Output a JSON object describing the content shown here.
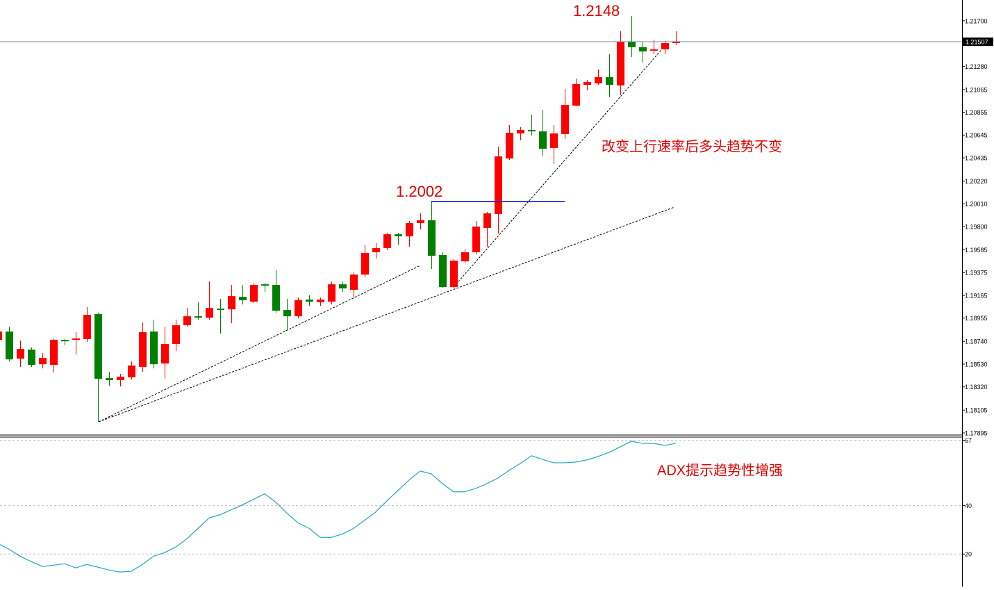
{
  "chart_data": [
    {
      "type": "candlestick",
      "up_color": "#ff0000",
      "down_color": "#008000",
      "open": [
        1.18754,
        1.18831,
        1.18581,
        1.18664,
        1.18529,
        1.18523,
        1.18754,
        1.18754,
        1.18761,
        1.18992,
        1.18401,
        1.18382,
        1.18408,
        1.18504,
        1.18831,
        1.18536,
        1.18716,
        1.18889,
        1.18972,
        1.18959,
        1.19043,
        1.19036,
        1.19152,
        1.19107,
        1.19267,
        1.19261,
        1.1903,
        1.18972,
        1.19126,
        1.19101,
        1.19107,
        1.19267,
        1.19216,
        1.19357,
        1.19563,
        1.19601,
        1.19729,
        1.1971,
        1.19832,
        1.19858,
        1.19537,
        1.19242,
        1.19479,
        1.19563,
        1.19787,
        1.19916,
        1.20429,
        1.2066,
        1.20692,
        1.20679,
        1.20525,
        1.20654,
        1.20917,
        1.21109,
        1.21122,
        1.2118,
        1.21103,
        1.21507,
        1.21456,
        1.21424,
        1.21436,
        1.21494
      ],
      "high": [
        1.18844,
        1.18876,
        1.18748,
        1.18683,
        1.18632,
        1.18767,
        1.18767,
        1.18825,
        1.19056,
        1.19004,
        1.18459,
        1.1844,
        1.18555,
        1.18914,
        1.1894,
        1.18876,
        1.1894,
        1.19049,
        1.19101,
        1.19293,
        1.19133,
        1.19261,
        1.19261,
        1.19274,
        1.1928,
        1.19402,
        1.19133,
        1.19145,
        1.19165,
        1.19145,
        1.19293,
        1.19293,
        1.19377,
        1.19633,
        1.19646,
        1.19742,
        1.19742,
        1.19851,
        1.19922,
        1.20031,
        1.19563,
        1.19498,
        1.19595,
        1.19851,
        1.19935,
        1.20538,
        1.20737,
        1.20718,
        1.20833,
        1.20878,
        1.20737,
        1.21071,
        1.21167,
        1.21154,
        1.2125,
        1.21391,
        1.21603,
        1.21744,
        1.21507,
        1.21526,
        1.21513,
        1.21603
      ],
      "low": [
        1.18741,
        1.18555,
        1.18504,
        1.18504,
        1.18491,
        1.18452,
        1.18703,
        1.18619,
        1.18735,
        1.17997,
        1.18331,
        1.18324,
        1.18388,
        1.18459,
        1.18491,
        1.18395,
        1.18651,
        1.18876,
        1.1894,
        1.1894,
        1.18812,
        1.18908,
        1.19081,
        1.19094,
        1.19197,
        1.19004,
        1.18844,
        1.18953,
        1.19069,
        1.19069,
        1.19081,
        1.19197,
        1.19145,
        1.19338,
        1.19505,
        1.19582,
        1.19633,
        1.19614,
        1.19774,
        1.19409,
        1.19235,
        1.19229,
        1.19466,
        1.19543,
        1.19614,
        1.19736,
        1.20416,
        1.20596,
        1.20641,
        1.20448,
        1.20378,
        1.20609,
        1.2091,
        1.21058,
        1.21109,
        1.20994,
        1.21013,
        1.21366,
        1.21314,
        1.21391,
        1.21391,
        1.21475
      ],
      "close": [
        1.18831,
        1.18574,
        1.18671,
        1.18523,
        1.18587,
        1.18754,
        1.18741,
        1.18767,
        1.18985,
        1.18395,
        1.18382,
        1.18414,
        1.18517,
        1.18825,
        1.18529,
        1.18716,
        1.18889,
        1.18972,
        1.18959,
        1.19049,
        1.1903,
        1.19158,
        1.1912,
        1.19261,
        1.19255,
        1.19024,
        1.18972,
        1.1912,
        1.19107,
        1.19126,
        1.19267,
        1.19229,
        1.19357,
        1.19556,
        1.19601,
        1.19729,
        1.1971,
        1.19832,
        1.19858,
        1.19531,
        1.19242,
        1.19486,
        1.19563,
        1.198,
        1.19922,
        1.20448,
        1.20666,
        1.20692,
        1.20679,
        1.20519,
        1.2066,
        1.20923,
        1.21116,
        1.21135,
        1.2118,
        1.21109,
        1.21507,
        1.21456,
        1.21417,
        1.21436,
        1.21494,
        1.21507
      ],
      "ylim": [
        1.17882,
        1.21892
      ],
      "yticks": [
        {
          "value": 1.217,
          "label": "1.21700"
        },
        {
          "value": 1.2128,
          "label": "1.21280"
        },
        {
          "value": 1.21065,
          "label": "1.21065"
        },
        {
          "value": 1.20855,
          "label": "1.20855"
        },
        {
          "value": 1.20645,
          "label": "1.20645"
        },
        {
          "value": 1.20435,
          "label": "1.20435"
        },
        {
          "value": 1.2022,
          "label": "1.20220"
        },
        {
          "value": 1.2001,
          "label": "1.20010"
        },
        {
          "value": 1.198,
          "label": "1.19800"
        },
        {
          "value": 1.19585,
          "label": "1.19585"
        },
        {
          "value": 1.19375,
          "label": "1.19375"
        },
        {
          "value": 1.19165,
          "label": "1.19165"
        },
        {
          "value": 1.18955,
          "label": "1.18955"
        },
        {
          "value": 1.1874,
          "label": "1.18740"
        },
        {
          "value": 1.1853,
          "label": "1.18530"
        },
        {
          "value": 1.1832,
          "label": "1.18320"
        },
        {
          "value": 1.18105,
          "label": "1.18105"
        },
        {
          "value": 1.17895,
          "label": "1.17895"
        }
      ],
      "current_price": 1.21507,
      "annotations": [
        "1.2148",
        "1.2002",
        "改变上行速率后多头趋势不变"
      ]
    },
    {
      "type": "line",
      "color": "#20a8bc",
      "values": [
        24.3,
        22.0,
        19.1,
        16.9,
        14.9,
        15.4,
        16.0,
        14.3,
        15.7,
        14.6,
        13.4,
        12.6,
        12.9,
        15.7,
        19.1,
        20.6,
        22.9,
        26.3,
        30.6,
        34.9,
        36.3,
        38.3,
        40.3,
        42.6,
        44.9,
        41.4,
        36.9,
        32.9,
        30.6,
        26.9,
        26.9,
        28.3,
        30.6,
        34.0,
        37.4,
        42.0,
        46.3,
        50.6,
        54.3,
        53.1,
        49.1,
        45.7,
        45.7,
        47.1,
        49.1,
        51.4,
        54.6,
        57.4,
        60.6,
        59.1,
        57.7,
        57.7,
        58.0,
        58.9,
        60.3,
        62.0,
        64.3,
        66.6,
        65.7,
        65.7,
        64.9,
        65.7
      ],
      "ylim": [
        6.6,
        68.3
      ],
      "yticks": [
        20,
        40,
        67
      ],
      "grid": true,
      "annotations": [
        "ADX提示趋势性增强"
      ]
    }
  ]
}
